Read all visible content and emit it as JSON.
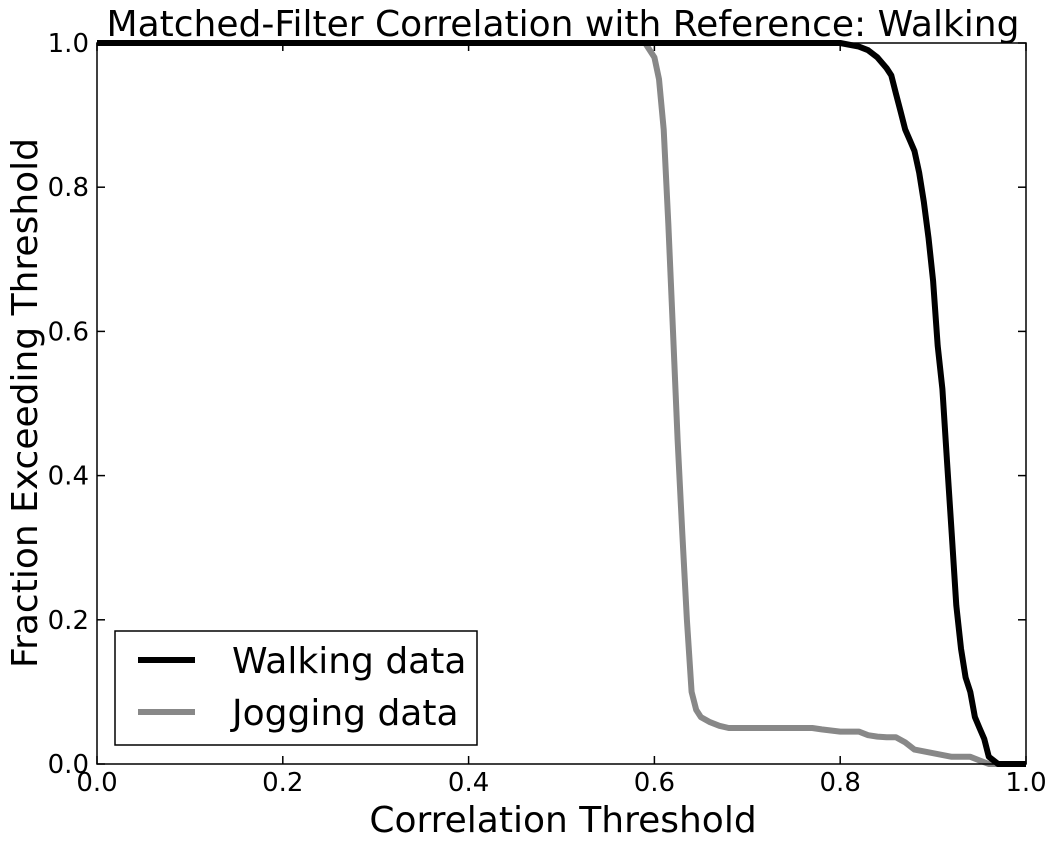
{
  "chart_data": {
    "type": "line",
    "title": "Matched-Filter Correlation with Reference: Walking",
    "xlabel": "Correlation Threshold",
    "ylabel": "Fraction Exceeding Threshold",
    "xlim": [
      0.0,
      1.0
    ],
    "ylim": [
      0.0,
      1.0
    ],
    "xticks": [
      "0.0",
      "0.2",
      "0.4",
      "0.6",
      "0.8",
      "1.0"
    ],
    "yticks": [
      "0.0",
      "0.2",
      "0.4",
      "0.6",
      "0.8",
      "1.0"
    ],
    "grid": false,
    "legend_position": "lower-left",
    "series": [
      {
        "name": "Walking data",
        "color": "#000000",
        "x": [
          0.0,
          0.78,
          0.8,
          0.82,
          0.83,
          0.84,
          0.85,
          0.855,
          0.86,
          0.865,
          0.87,
          0.875,
          0.88,
          0.885,
          0.89,
          0.895,
          0.9,
          0.905,
          0.91,
          0.915,
          0.92,
          0.925,
          0.93,
          0.935,
          0.94,
          0.945,
          0.95,
          0.955,
          0.96,
          0.965,
          0.97,
          1.0
        ],
        "y": [
          1.0,
          1.0,
          1.0,
          0.995,
          0.99,
          0.98,
          0.965,
          0.955,
          0.93,
          0.905,
          0.88,
          0.865,
          0.85,
          0.82,
          0.78,
          0.73,
          0.67,
          0.58,
          0.52,
          0.42,
          0.32,
          0.22,
          0.16,
          0.12,
          0.1,
          0.065,
          0.05,
          0.035,
          0.01,
          0.005,
          0.0,
          0.0
        ]
      },
      {
        "name": "Jogging data",
        "color": "#888888",
        "x": [
          0.0,
          0.59,
          0.6,
          0.605,
          0.61,
          0.615,
          0.62,
          0.625,
          0.63,
          0.635,
          0.64,
          0.645,
          0.65,
          0.66,
          0.67,
          0.68,
          0.7,
          0.75,
          0.77,
          0.78,
          0.8,
          0.81,
          0.82,
          0.83,
          0.84,
          0.85,
          0.86,
          0.87,
          0.88,
          0.9,
          0.92,
          0.94,
          0.95,
          0.96,
          1.0
        ],
        "y": [
          1.0,
          1.0,
          0.98,
          0.95,
          0.88,
          0.75,
          0.6,
          0.45,
          0.32,
          0.2,
          0.1,
          0.075,
          0.065,
          0.058,
          0.053,
          0.05,
          0.05,
          0.05,
          0.05,
          0.048,
          0.045,
          0.045,
          0.045,
          0.04,
          0.038,
          0.037,
          0.037,
          0.03,
          0.02,
          0.015,
          0.01,
          0.01,
          0.005,
          0.0,
          0.0
        ]
      }
    ]
  }
}
